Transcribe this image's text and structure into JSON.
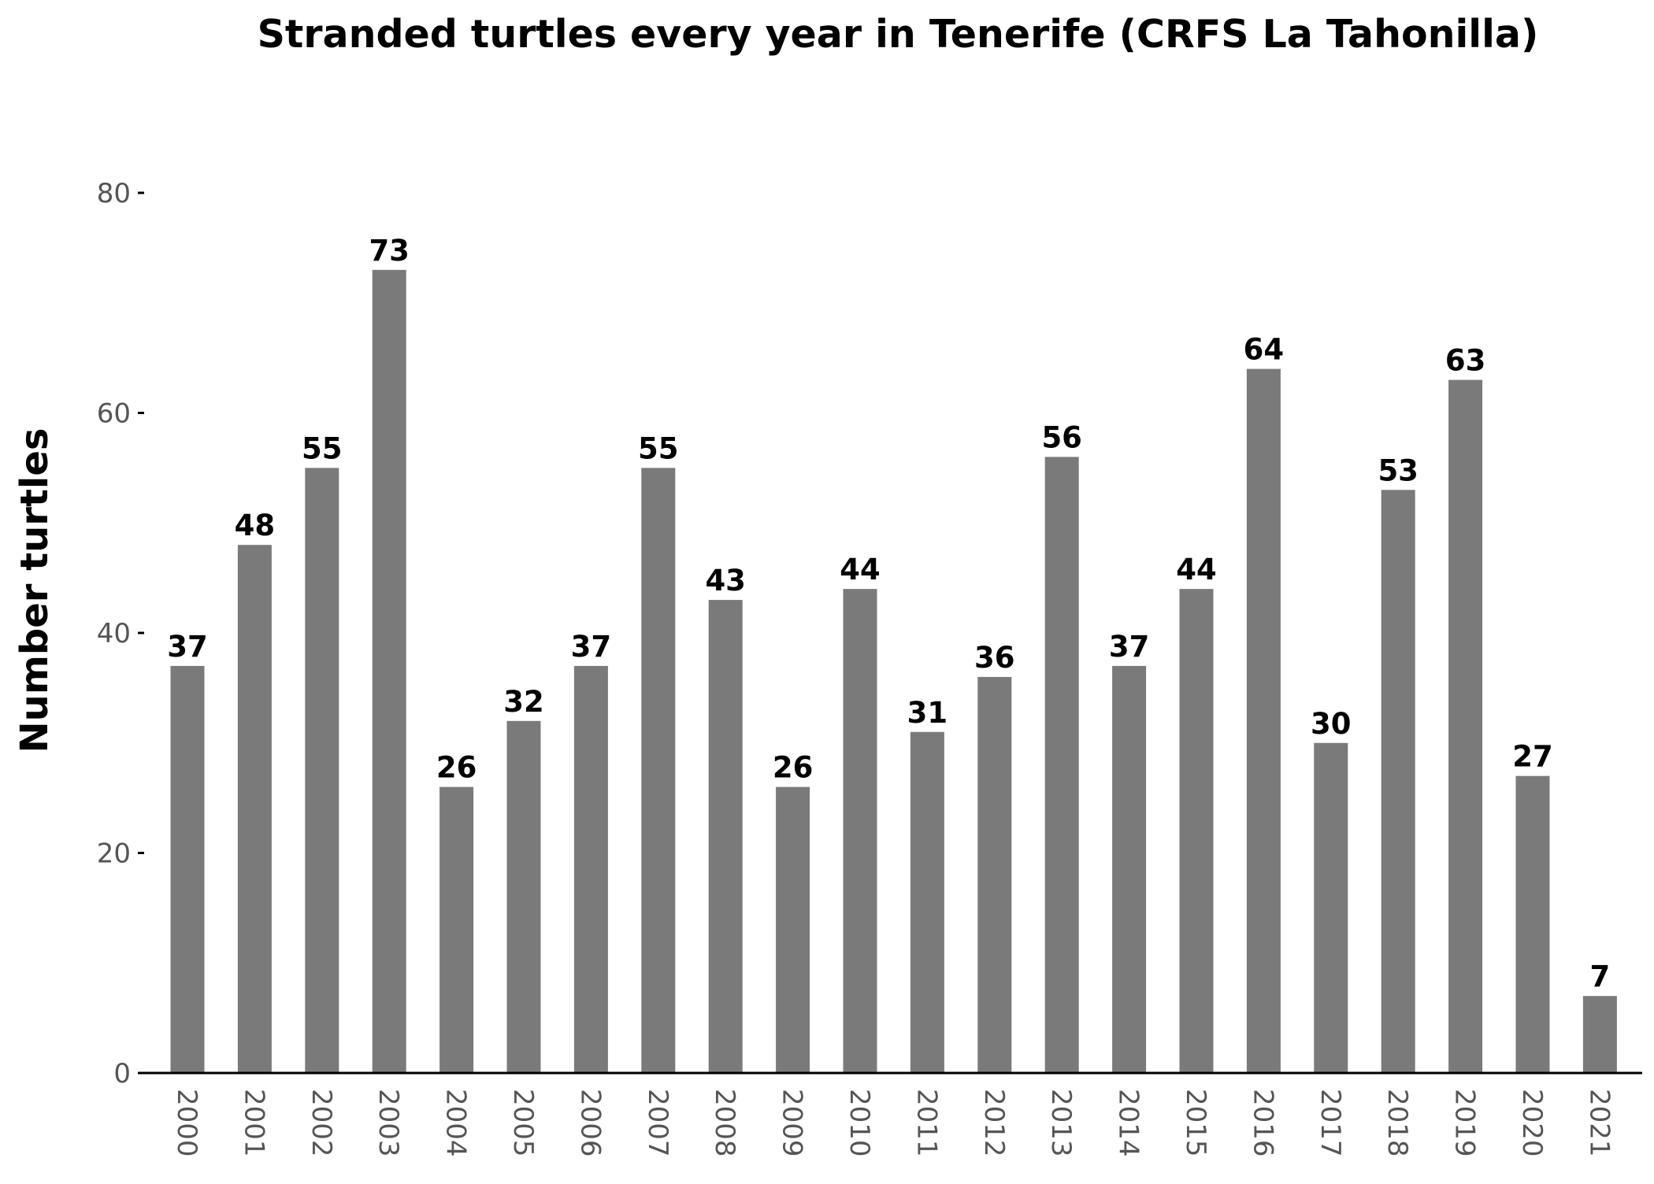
{
  "chart_data": {
    "type": "bar",
    "title": "Stranded turtles every year in Tenerife (CRFS La Tahonilla)",
    "xlabel": "",
    "ylabel": "Number turtles",
    "categories": [
      "2000",
      "2001",
      "2002",
      "2003",
      "2004",
      "2005",
      "2006",
      "2007",
      "2008",
      "2009",
      "2010",
      "2011",
      "2012",
      "2013",
      "2014",
      "2015",
      "2016",
      "2017",
      "2018",
      "2019",
      "2020",
      "2021"
    ],
    "values": [
      37,
      48,
      55,
      73,
      26,
      32,
      37,
      55,
      43,
      26,
      44,
      31,
      36,
      56,
      37,
      44,
      64,
      30,
      53,
      63,
      27,
      7
    ],
    "yticks": [
      0,
      20,
      40,
      60,
      80
    ],
    "ylim": [
      0,
      80
    ],
    "grid": false,
    "legend": "none",
    "bar_color": "#7a7a7a",
    "axis_color": "#000000",
    "tick_label_color": "#555555"
  }
}
